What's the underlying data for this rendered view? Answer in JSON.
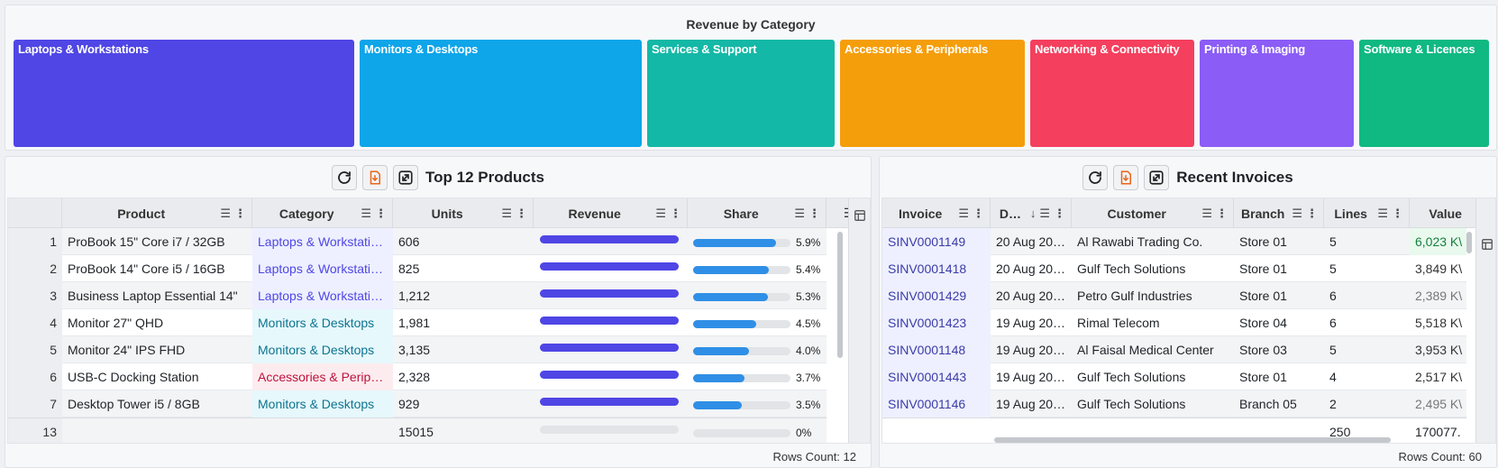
{
  "treemap": {
    "title": "Revenue by Category",
    "tiles": [
      {
        "label": "Laptops & Workstations",
        "color": "#4f46e5"
      },
      {
        "label": "Monitors & Desktops",
        "color": "#0ea5e9"
      },
      {
        "label": "Services & Support",
        "color": "#14b8a6"
      },
      {
        "label": "Accessories & Peripherals",
        "color": "#f59e0b"
      },
      {
        "label": "Networking & Connectivity",
        "color": "#f43f5e"
      },
      {
        "label": "Printing & Imaging",
        "color": "#8b5cf6"
      },
      {
        "label": "Software & Licences",
        "color": "#10b981"
      }
    ]
  },
  "products": {
    "title": "Top 12 Products",
    "icons": [
      "refresh-icon",
      "export-icon",
      "expand-icon"
    ],
    "columns": [
      "Product",
      "Category",
      "Units",
      "Revenue",
      "Share"
    ],
    "rows": [
      {
        "n": "1",
        "product": "ProBook 15\" Core i7 / 32GB",
        "category": "Laptops & Workstati…",
        "units": "606",
        "revenue_frac": 1.0,
        "share_frac": 0.85,
        "share": "5.9%",
        "cat_color": "#4f46e5",
        "cat_bg": "#eef0ff"
      },
      {
        "n": "2",
        "product": "ProBook 14\" Core i5 / 16GB",
        "category": "Laptops & Workstati…",
        "units": "825",
        "revenue_frac": 1.0,
        "share_frac": 0.78,
        "share": "5.4%",
        "cat_color": "#4f46e5",
        "cat_bg": "#eef0ff"
      },
      {
        "n": "3",
        "product": "Business Laptop Essential 14\"",
        "category": "Laptops & Workstati…",
        "units": "1,212",
        "revenue_frac": 1.0,
        "share_frac": 0.77,
        "share": "5.3%",
        "cat_color": "#4f46e5",
        "cat_bg": "#eef0ff"
      },
      {
        "n": "4",
        "product": "Monitor 27\" QHD",
        "category": "Monitors & Desktops",
        "units": "1,981",
        "revenue_frac": 1.0,
        "share_frac": 0.65,
        "share": "4.5%",
        "cat_color": "#0e7490",
        "cat_bg": "#e6f8fc"
      },
      {
        "n": "5",
        "product": "Monitor 24\" IPS FHD",
        "category": "Monitors & Desktops",
        "units": "3,135",
        "revenue_frac": 1.0,
        "share_frac": 0.57,
        "share": "4.0%",
        "cat_color": "#0e7490",
        "cat_bg": "#e6f8fc"
      },
      {
        "n": "6",
        "product": "USB-C Docking Station",
        "category": "Accessories & Perip…",
        "units": "2,328",
        "revenue_frac": 1.0,
        "share_frac": 0.53,
        "share": "3.7%",
        "cat_color": "#be123c",
        "cat_bg": "#fdecef"
      },
      {
        "n": "7",
        "product": "Desktop Tower i5 / 8GB",
        "category": "Monitors & Desktops",
        "units": "929",
        "revenue_frac": 1.0,
        "share_frac": 0.5,
        "share": "3.5%",
        "cat_color": "#0e7490",
        "cat_bg": "#e6f8fc"
      }
    ],
    "total": {
      "n": "13",
      "units": "15015",
      "share": "0%",
      "revenue_frac": 0,
      "share_frac": 0
    },
    "rows_count": "Rows Count: 12",
    "colors": {
      "revenue_bar": "#4f46e5",
      "share_bar": "#2f8fe6"
    }
  },
  "invoices": {
    "title": "Recent Invoices",
    "icons": [
      "refresh-icon",
      "export-icon",
      "expand-icon"
    ],
    "columns": [
      "Invoice",
      "D…",
      "Customer",
      "Branch",
      "Lines",
      "Value"
    ],
    "rows": [
      {
        "invoice": "SINV0001149",
        "date": "20 Aug 20…",
        "customer": "Al Rawabi Trading Co.",
        "branch": "Store 01",
        "lines": "5",
        "value": "6,023 K\\",
        "value_color": "#15803d",
        "value_bg": "#e9f9ee"
      },
      {
        "invoice": "SINV0001418",
        "date": "20 Aug 20…",
        "customer": "Gulf Tech Solutions",
        "branch": "Store 01",
        "lines": "5",
        "value": "3,849 K\\",
        "value_color": "#333",
        "value_bg": ""
      },
      {
        "invoice": "SINV0001429",
        "date": "20 Aug 20…",
        "customer": "Petro Gulf Industries",
        "branch": "Store 01",
        "lines": "6",
        "value": "2,389 K\\",
        "value_color": "#777",
        "value_bg": ""
      },
      {
        "invoice": "SINV0001423",
        "date": "19 Aug 20…",
        "customer": "Rimal Telecom",
        "branch": "Store 04",
        "lines": "6",
        "value": "5,518 K\\",
        "value_color": "#333",
        "value_bg": ""
      },
      {
        "invoice": "SINV0001148",
        "date": "19 Aug 20…",
        "customer": "Al Faisal Medical Center",
        "branch": "Store 03",
        "lines": "5",
        "value": "3,953 K\\",
        "value_color": "#333",
        "value_bg": ""
      },
      {
        "invoice": "SINV0001443",
        "date": "19 Aug 20…",
        "customer": "Gulf Tech Solutions",
        "branch": "Store 01",
        "lines": "4",
        "value": "2,517 K\\",
        "value_color": "#333",
        "value_bg": ""
      },
      {
        "invoice": "SINV0001146",
        "date": "19 Aug 20…",
        "customer": "Gulf Tech Solutions",
        "branch": "Branch 05",
        "lines": "2",
        "value": "2,495 K\\",
        "value_color": "#777",
        "value_bg": ""
      }
    ],
    "total": {
      "lines": "250",
      "value": "170077."
    },
    "rows_count": "Rows Count: 60",
    "colors": {
      "invoice_link": "#3b3ba8",
      "invoice_bg": "#eef0ff"
    }
  }
}
